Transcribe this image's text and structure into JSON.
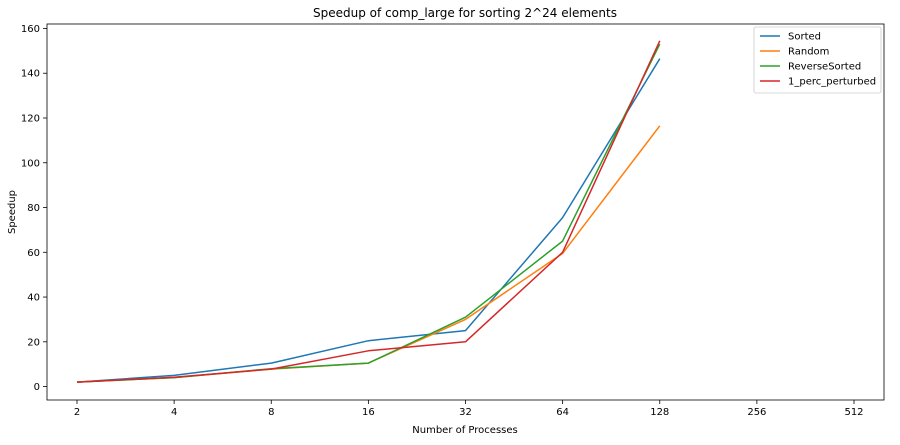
{
  "chart_data": {
    "type": "line",
    "title": "Speedup of comp_large for sorting 2^24 elements",
    "xlabel": "Number of Processes",
    "ylabel": "Speedup",
    "x_scale": "log2",
    "x_ticks": [
      2,
      4,
      8,
      16,
      32,
      64,
      128,
      256,
      512
    ],
    "y_ticks": [
      0,
      20,
      40,
      60,
      80,
      100,
      120,
      140,
      160
    ],
    "ylim": [
      -6,
      162
    ],
    "xlim": [
      2,
      512
    ],
    "grid": false,
    "legend_position": "top-right",
    "series": [
      {
        "name": "Sorted",
        "color": "#1f77b4",
        "x": [
          2,
          4,
          8,
          16,
          32,
          64,
          128
        ],
        "y": [
          2.0,
          5.0,
          10.5,
          20.5,
          25.0,
          75.5,
          146.5
        ]
      },
      {
        "name": "Random",
        "color": "#ff7f0e",
        "x": [
          2,
          4,
          8,
          16,
          32,
          64,
          128
        ],
        "y": [
          2.0,
          4.0,
          7.8,
          10.5,
          30.0,
          59.5,
          116.5
        ]
      },
      {
        "name": "ReverseSorted",
        "color": "#2ca02c",
        "x": [
          2,
          4,
          8,
          16,
          32,
          64,
          128
        ],
        "y": [
          2.0,
          4.0,
          8.0,
          10.5,
          31.0,
          65.0,
          153.0
        ]
      },
      {
        "name": "1_perc_perturbed",
        "color": "#d62728",
        "x": [
          2,
          4,
          8,
          16,
          32,
          64,
          128
        ],
        "y": [
          2.0,
          4.2,
          7.8,
          16.0,
          20.0,
          60.0,
          154.5
        ]
      }
    ]
  }
}
